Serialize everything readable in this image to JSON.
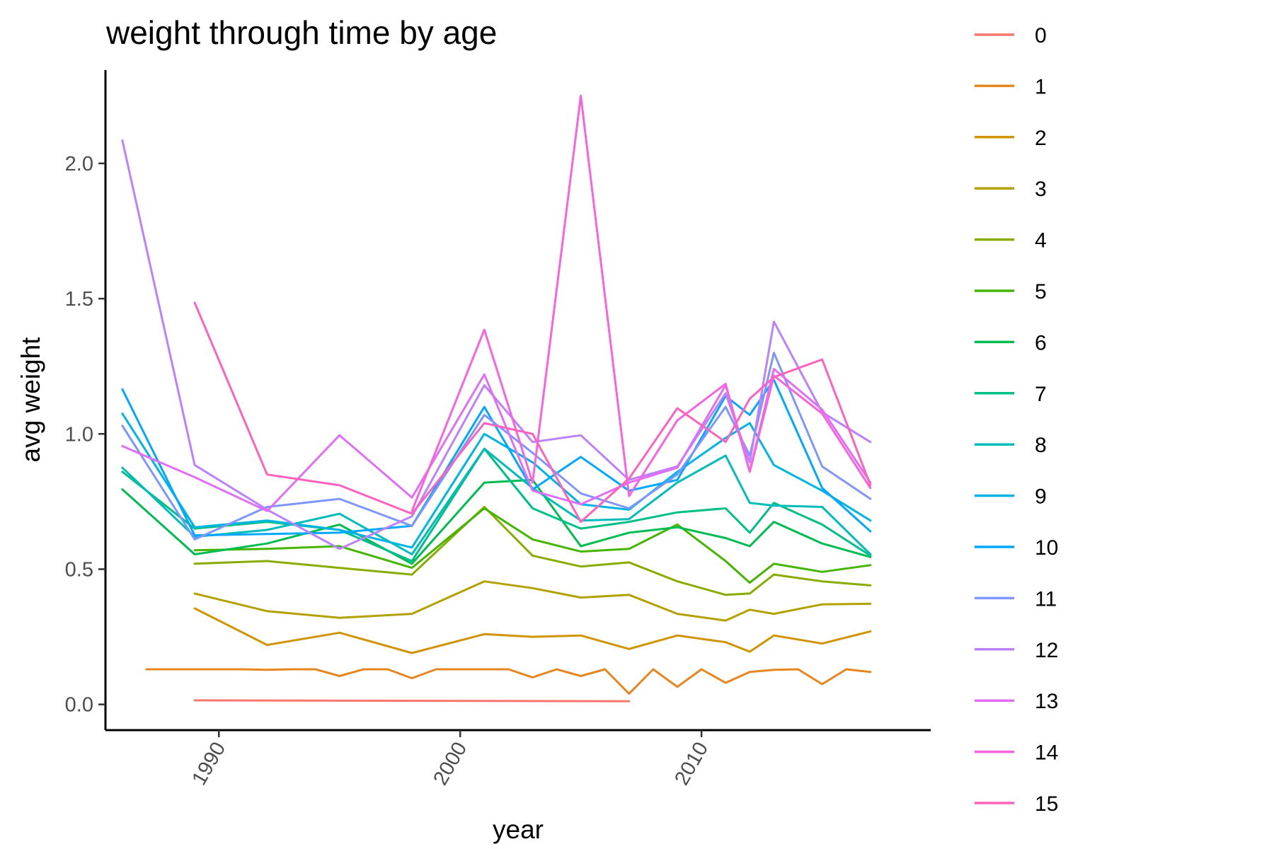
{
  "chart_data": {
    "type": "line",
    "title": "weight through time by age",
    "xlabel": "year",
    "ylabel": "avg weight",
    "xlim": [
      1985.3,
      2019.5
    ],
    "ylim": [
      -0.095,
      2.345
    ],
    "x_ticks": [
      1990,
      2000,
      2010
    ],
    "y_ticks": [
      0.0,
      0.5,
      1.0,
      1.5,
      2.0
    ],
    "y_tick_labels": [
      "0.0",
      "0.5",
      "1.0",
      "1.5",
      "2.0"
    ],
    "grid": false,
    "legend": "right",
    "series": [
      {
        "name": "0",
        "color": "#F8766D",
        "x": [
          1989,
          2007
        ],
        "y": [
          0.015,
          0.012
        ]
      },
      {
        "name": "1",
        "color": "#E7851E",
        "x": [
          1987,
          1991,
          1992,
          1993,
          1994,
          1995,
          1996,
          1997,
          1998,
          1999,
          2002,
          2003,
          2004,
          2005,
          2006,
          2007,
          2008,
          2009,
          2010,
          2011,
          2012,
          2013,
          2014,
          2015,
          2016,
          2017
        ],
        "y": [
          0.13,
          0.13,
          0.128,
          0.13,
          0.13,
          0.105,
          0.13,
          0.13,
          0.097,
          0.13,
          0.13,
          0.1,
          0.13,
          0.105,
          0.13,
          0.04,
          0.13,
          0.065,
          0.13,
          0.08,
          0.12,
          0.128,
          0.13,
          0.075,
          0.13,
          0.12
        ]
      },
      {
        "name": "2",
        "color": "#D09400",
        "x": [
          1989,
          1992,
          1995,
          1998,
          2001,
          2003,
          2005,
          2007,
          2009,
          2011,
          2012,
          2013,
          2015,
          2017
        ],
        "y": [
          0.355,
          0.22,
          0.265,
          0.19,
          0.26,
          0.25,
          0.255,
          0.205,
          0.255,
          0.23,
          0.195,
          0.255,
          0.225,
          0.27
        ]
      },
      {
        "name": "3",
        "color": "#B2A100",
        "x": [
          1989,
          1992,
          1995,
          1998,
          2001,
          2003,
          2005,
          2007,
          2009,
          2011,
          2012,
          2013,
          2015,
          2017
        ],
        "y": [
          0.41,
          0.345,
          0.32,
          0.335,
          0.455,
          0.43,
          0.395,
          0.405,
          0.335,
          0.31,
          0.35,
          0.335,
          0.37,
          0.372
        ]
      },
      {
        "name": "4",
        "color": "#89AC00",
        "x": [
          1989,
          1992,
          1995,
          1998,
          2001,
          2003,
          2005,
          2007,
          2009,
          2011,
          2012,
          2013,
          2015,
          2017
        ],
        "y": [
          0.52,
          0.53,
          0.505,
          0.48,
          0.73,
          0.55,
          0.51,
          0.525,
          0.455,
          0.405,
          0.41,
          0.48,
          0.455,
          0.44
        ]
      },
      {
        "name": "5",
        "color": "#45B500",
        "x": [
          1989,
          1992,
          1995,
          1998,
          2001,
          2003,
          2005,
          2007,
          2009,
          2011,
          2012,
          2013,
          2015,
          2017
        ],
        "y": [
          0.57,
          0.575,
          0.585,
          0.505,
          0.725,
          0.61,
          0.565,
          0.575,
          0.665,
          0.53,
          0.45,
          0.52,
          0.49,
          0.515
        ]
      },
      {
        "name": "6",
        "color": "#00BC51",
        "x": [
          1986,
          1989,
          1992,
          1995,
          1998,
          2001,
          2003,
          2005,
          2007,
          2009,
          2011,
          2012,
          2013,
          2015,
          2017
        ],
        "y": [
          0.795,
          0.555,
          0.595,
          0.665,
          0.52,
          0.82,
          0.83,
          0.585,
          0.635,
          0.655,
          0.615,
          0.585,
          0.675,
          0.595,
          0.545
        ]
      },
      {
        "name": "7",
        "color": "#00C087",
        "x": [
          1986,
          1989,
          1992,
          1995,
          1998,
          2001,
          2003,
          2005,
          2007,
          2009,
          2011,
          2012,
          2013,
          2015,
          2017
        ],
        "y": [
          0.86,
          0.65,
          0.675,
          0.645,
          0.53,
          0.945,
          0.725,
          0.65,
          0.675,
          0.71,
          0.725,
          0.635,
          0.745,
          0.665,
          0.55
        ]
      },
      {
        "name": "8",
        "color": "#00BDBA",
        "x": [
          1986,
          1989,
          1992,
          1995,
          1998,
          2001,
          2003,
          2005,
          2007,
          2009,
          2011,
          2012,
          2013,
          2015,
          2017
        ],
        "y": [
          0.875,
          0.62,
          0.645,
          0.705,
          0.555,
          0.945,
          0.8,
          0.68,
          0.685,
          0.82,
          0.92,
          0.745,
          0.735,
          0.73,
          0.555
        ]
      },
      {
        "name": "9",
        "color": "#00B5E2",
        "x": [
          1986,
          1989,
          1992,
          1995,
          1998,
          2001,
          2003,
          2005,
          2007,
          2009,
          2011,
          2012,
          2013,
          2015,
          2017
        ],
        "y": [
          1.075,
          0.655,
          0.68,
          0.645,
          0.58,
          1.0,
          0.895,
          0.74,
          0.72,
          0.86,
          0.985,
          1.04,
          0.885,
          0.79,
          0.68
        ]
      },
      {
        "name": "10",
        "color": "#00A8FF",
        "x": [
          1986,
          1989,
          1992,
          1995,
          1998,
          2001,
          2003,
          2005,
          2007,
          2009,
          2011,
          2012,
          2013,
          2015,
          2017
        ],
        "y": [
          1.165,
          0.625,
          0.63,
          0.635,
          0.66,
          1.1,
          0.795,
          0.915,
          0.79,
          0.83,
          1.14,
          1.07,
          1.2,
          0.8,
          0.64
        ]
      },
      {
        "name": "11",
        "color": "#7F96FF",
        "x": [
          1986,
          1989,
          1992,
          1995,
          1998,
          2001,
          2003,
          2005,
          2007,
          2009,
          2011,
          2012,
          2013,
          2015,
          2017
        ],
        "y": [
          1.03,
          0.61,
          0.73,
          0.76,
          0.66,
          1.07,
          0.93,
          0.78,
          0.725,
          0.85,
          1.1,
          0.92,
          1.3,
          0.88,
          0.76
        ]
      },
      {
        "name": "12",
        "color": "#BC81FF",
        "x": [
          1986,
          1989,
          1992,
          1995,
          1998,
          2001,
          2003,
          2005,
          2007,
          2009,
          2011,
          2012,
          2013,
          2015,
          2017
        ],
        "y": [
          2.085,
          0.885,
          0.72,
          0.575,
          0.695,
          1.18,
          0.97,
          0.995,
          0.83,
          0.88,
          1.15,
          0.895,
          1.415,
          1.08,
          0.97
        ]
      },
      {
        "name": "13",
        "color": "#E26EF7",
        "x": [
          1986,
          1989,
          1992,
          1995,
          1998,
          2001,
          2003,
          2005,
          2007,
          2009,
          2011,
          2012,
          2013,
          2015,
          2017
        ],
        "y": [
          0.955,
          0.84,
          0.715,
          0.995,
          0.765,
          1.22,
          0.79,
          0.74,
          0.82,
          0.875,
          1.18,
          0.86,
          1.24,
          1.09,
          0.82
        ]
      },
      {
        "name": "14",
        "color": "#F863DF",
        "x": [
          1998,
          2001,
          2003,
          2005,
          2007,
          2009,
          2011,
          2012,
          2013,
          2015,
          2017
        ],
        "y": [
          0.715,
          1.385,
          0.82,
          2.25,
          0.77,
          1.05,
          1.185,
          0.86,
          1.215,
          1.075,
          0.8
        ]
      },
      {
        "name": "15",
        "color": "#FF62BC",
        "x": [
          1989,
          1992,
          1995,
          1998,
          2001,
          2003,
          2005,
          2007,
          2009,
          2011,
          2012,
          2013,
          2015,
          2017
        ],
        "y": [
          1.485,
          0.85,
          0.81,
          0.705,
          1.04,
          1.0,
          0.675,
          0.835,
          1.095,
          0.97,
          1.13,
          1.21,
          1.275,
          0.81
        ]
      }
    ]
  }
}
